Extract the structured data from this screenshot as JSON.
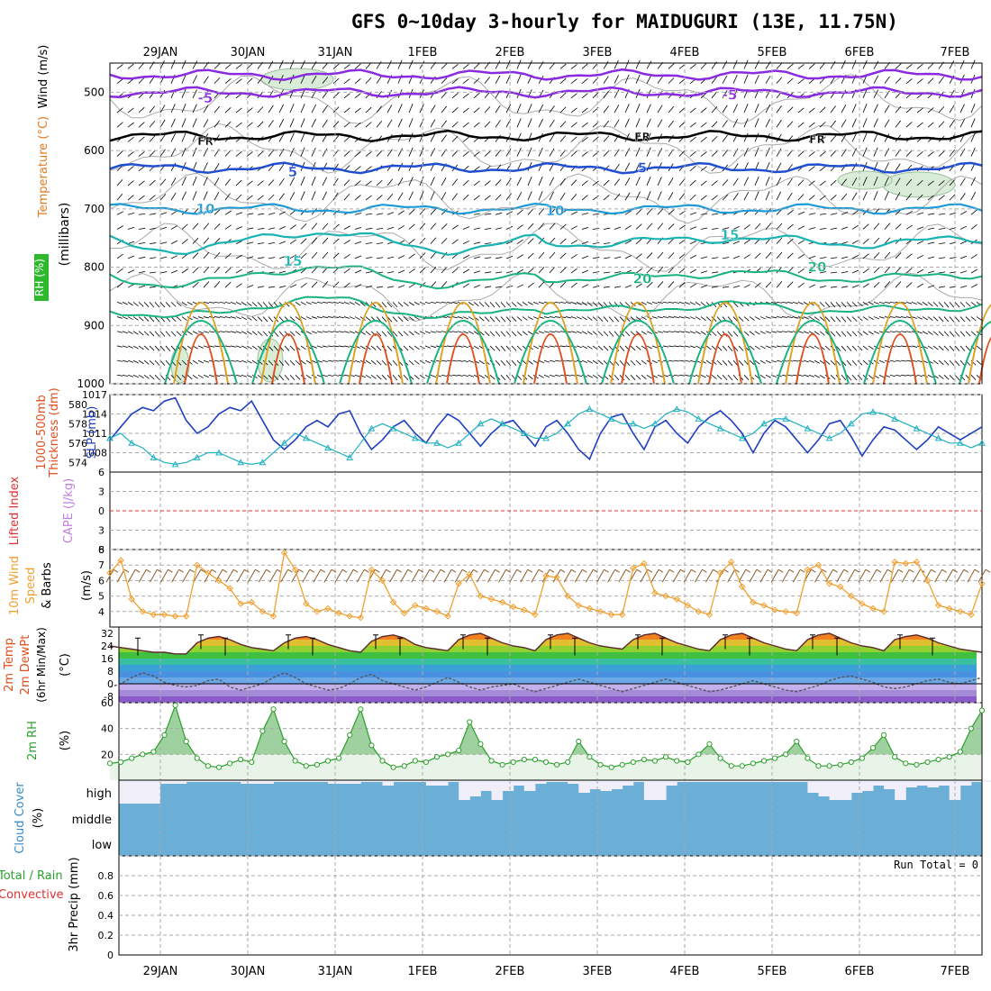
{
  "title": "GFS 0~10day 3-hourly for MAIDUGURI (13E, 11.75N)",
  "dates": [
    "29JAN",
    "30JAN",
    "31JAN",
    "1FEB",
    "2FEB",
    "3FEB",
    "4FEB",
    "5FEB",
    "6FEB",
    "7FEB"
  ],
  "colors": {
    "temp": [
      "#8a2be2",
      "#000000",
      "#1f4fd0",
      "#1e9ad6",
      "#19b3b3",
      "#19b380",
      "#e0a020",
      "#e05020",
      "#d01060"
    ],
    "slp": "#1f3fc0",
    "thickness": "#1fb0c0",
    "wind10m": "#f0a030",
    "barbs": "#8b5a2b",
    "rh": "#2ca02c",
    "cloud": "#6baed6",
    "precip_total": "#2ca02c",
    "precip_conv": "#e03030",
    "lifted": "#e03030",
    "cape": "#c080e0"
  },
  "chart_data": [
    {
      "panel": "upper-air",
      "type": "contour",
      "axis_label_parts": [
        "Wind (m/s)",
        "Temperature (°C)",
        "RH (%)",
        "(millibars)"
      ],
      "yticks": [
        500,
        600,
        700,
        800,
        900,
        1000
      ],
      "ylim": [
        450,
        1000
      ],
      "contour_labels": [
        {
          "text": "-5",
          "date": "29JAN",
          "level": 510
        },
        {
          "text": "-5",
          "date": "4FEB",
          "level": 505
        },
        {
          "text": "FR",
          "date": "29JAN",
          "level": 583
        },
        {
          "text": "FR",
          "date": "3FEB",
          "level": 575
        },
        {
          "text": "FR",
          "date": "5FEB",
          "level": 580
        },
        {
          "text": "5",
          "date": "30JAN",
          "level": 637
        },
        {
          "text": "5",
          "date": "3FEB",
          "level": 630
        },
        {
          "text": "10",
          "date": "29JAN",
          "level": 700
        },
        {
          "text": "10",
          "date": "2FEB",
          "level": 703
        },
        {
          "text": "15",
          "date": "30JAN",
          "level": 790
        },
        {
          "text": "15",
          "date": "4FEB",
          "level": 745
        },
        {
          "text": "20",
          "date": "3FEB",
          "level": 820
        },
        {
          "text": "20",
          "date": "5FEB",
          "level": 800
        }
      ]
    },
    {
      "panel": "slp-thickness",
      "type": "line",
      "axis_label_parts": [
        "1000-500mb",
        "Thickness (dm)",
        "SLP (mb)"
      ],
      "yticks_left": [
        574,
        576,
        578,
        580
      ],
      "yticks_right": [
        1008,
        1011,
        1014,
        1017
      ],
      "ylim_left": [
        573,
        581
      ],
      "ylim_right": [
        1005,
        1017
      ],
      "series": [
        {
          "name": "SLP (mb)",
          "axis": "right",
          "values": [
            1010,
            1012,
            1014,
            1015,
            1014.5,
            1016,
            1016.5,
            1013,
            1011,
            1012,
            1014,
            1015,
            1014.5,
            1016,
            1013,
            1010,
            1008.5,
            1010,
            1012,
            1013,
            1012,
            1014,
            1014.5,
            1011,
            1008.5,
            1010,
            1012,
            1013,
            1011,
            1009.5,
            1012,
            1014,
            1013,
            1011,
            1009,
            1011,
            1012.5,
            1013,
            1011,
            1009,
            1012,
            1013,
            1011,
            1008.5,
            1007,
            1011,
            1013.5,
            1014,
            1011,
            1008.5,
            1012,
            1013,
            1011,
            1009.5,
            1012,
            1013.5,
            1014.5,
            1013,
            1011,
            1008,
            1011,
            1013,
            1012,
            1010,
            1008,
            1010,
            1012.5,
            1013,
            1010.5,
            1007.5,
            1010,
            1012,
            1011.5,
            1010,
            1008.5,
            1010,
            1012,
            1011,
            1010,
            1011,
            1012
          ]
        },
        {
          "name": "1000-500mb Thickness (dm)",
          "axis": "left",
          "values": [
            576.5,
            577,
            576,
            575.5,
            574.5,
            574,
            573.8,
            574,
            574.5,
            575,
            575,
            574.5,
            574,
            573.8,
            574,
            575,
            576,
            577,
            576.5,
            576,
            575.5,
            575,
            574.5,
            576,
            577.5,
            578,
            577.5,
            577,
            576.5,
            576,
            576,
            575.5,
            576,
            577,
            578,
            578.5,
            578,
            577.5,
            577,
            576.5,
            576.5,
            577,
            578,
            579,
            579.5,
            579,
            578.5,
            578,
            578,
            577.5,
            578,
            579,
            579.5,
            579.2,
            578.5,
            578,
            577.5,
            577,
            576.5,
            577,
            578,
            578.5,
            578.5,
            578,
            577.5,
            577,
            576.5,
            577,
            578,
            579,
            579.2,
            579,
            578.5,
            578,
            577.5,
            577,
            576.5,
            576,
            576,
            575.5,
            576
          ]
        }
      ]
    },
    {
      "panel": "stability",
      "type": "line",
      "axis_label_parts": [
        "Lifted Index",
        "CAPE (J/kg)"
      ],
      "yticks": [
        6,
        3,
        0,
        3,
        6
      ],
      "ylim": [
        -6,
        6
      ],
      "series": [
        {
          "name": "Lifted Index",
          "constant": 0
        }
      ]
    },
    {
      "panel": "wind10m",
      "type": "line",
      "axis_label_parts": [
        "10m Wind",
        "Speed",
        "(m/s)",
        "& Barbs"
      ],
      "yticks": [
        4,
        5,
        6,
        7,
        8
      ],
      "ylim": [
        3,
        8
      ],
      "series": [
        {
          "name": "10m Wind Speed",
          "values": [
            6.5,
            7.3,
            4.8,
            4.0,
            3.8,
            3.8,
            3.7,
            3.7,
            7.0,
            6.5,
            6.0,
            5.5,
            4.5,
            4.6,
            4.0,
            3.7,
            7.8,
            6.7,
            4.5,
            4.0,
            4.2,
            3.9,
            3.7,
            3.6,
            6.7,
            6.0,
            4.6,
            3.9,
            4.4,
            4.2,
            4.0,
            3.7,
            5.8,
            6.4,
            5.0,
            4.8,
            4.6,
            4.3,
            4.1,
            3.8,
            6.3,
            6.2,
            5.0,
            4.4,
            4.2,
            4.0,
            3.8,
            3.8,
            6.8,
            7.1,
            5.2,
            5.0,
            4.8,
            4.4,
            4.0,
            3.8,
            6.5,
            7.2,
            5.6,
            4.6,
            4.4,
            4.1,
            4.0,
            3.9,
            6.7,
            7.0,
            5.8,
            5.6,
            5.0,
            4.5,
            4.2,
            4.0,
            7.2,
            7.1,
            7.2,
            6.0,
            4.4,
            4.2,
            4.0,
            3.8,
            5.8
          ]
        }
      ]
    },
    {
      "panel": "temperature",
      "type": "area",
      "axis_label_parts": [
        "2m Temp",
        "2m DewPt",
        "(6hr Min/Max)",
        "(°C)"
      ],
      "yticks": [
        -8,
        0,
        8,
        16,
        24,
        32
      ],
      "ylim": [
        -12,
        36
      ],
      "series": [
        {
          "name": "2m Temp",
          "values": [
            24,
            23,
            22,
            21,
            20,
            20,
            19,
            19,
            26,
            29,
            30,
            28,
            25,
            23,
            22,
            21,
            26,
            29,
            30,
            28,
            25,
            23,
            21,
            20,
            27,
            30,
            31,
            29,
            25,
            23,
            22,
            21,
            28,
            31,
            32,
            29,
            26,
            24,
            23,
            21,
            28,
            31,
            32,
            29,
            26,
            24,
            23,
            22,
            28,
            31,
            32,
            29,
            26,
            24,
            22,
            21,
            28,
            31,
            32,
            29,
            26,
            24,
            22,
            21,
            28,
            31,
            32,
            29,
            26,
            24,
            23,
            21,
            28,
            30,
            31,
            29,
            26,
            24,
            22,
            21,
            20
          ]
        },
        {
          "name": "2m DewPt",
          "values": [
            -2,
            0,
            4,
            7,
            5,
            1,
            -1,
            -2,
            -1,
            2,
            3,
            -2,
            -4,
            -2,
            0,
            4,
            7,
            4,
            0,
            -2,
            -4,
            -3,
            0,
            4,
            6,
            2,
            0,
            -2,
            -4,
            -2,
            1,
            4,
            1,
            -2,
            -4,
            -2,
            -1,
            0,
            -3,
            -5,
            -3,
            -1,
            1,
            3,
            1,
            -1,
            -3,
            -5,
            -3,
            -1,
            1,
            3,
            1,
            -1,
            -3,
            -5,
            -4,
            -2,
            0,
            2,
            0,
            -2,
            -4,
            -5,
            -3,
            -1,
            2,
            4,
            5,
            3,
            1,
            -2,
            -3,
            -2,
            0,
            2,
            3,
            1,
            0,
            2,
            4
          ]
        }
      ]
    },
    {
      "panel": "rh2m",
      "type": "area",
      "axis_label_parts": [
        "2m RH",
        "(%)"
      ],
      "yticks": [
        20,
        40,
        60
      ],
      "ylim": [
        0,
        60
      ],
      "series": [
        {
          "name": "2m RH",
          "values": [
            13,
            14,
            17,
            20,
            22,
            35,
            58,
            30,
            17,
            11,
            10,
            13,
            16,
            14,
            38,
            55,
            30,
            15,
            11,
            12,
            15,
            17,
            35,
            55,
            27,
            15,
            10,
            11,
            15,
            14,
            18,
            20,
            23,
            45,
            28,
            15,
            12,
            14,
            16,
            16,
            14,
            12,
            14,
            30,
            18,
            12,
            10,
            12,
            14,
            16,
            15,
            18,
            15,
            14,
            20,
            28,
            17,
            11,
            11,
            13,
            15,
            17,
            20,
            30,
            17,
            11,
            11,
            12,
            14,
            17,
            25,
            35,
            18,
            13,
            12,
            14,
            16,
            18,
            22,
            40,
            54
          ]
        }
      ]
    },
    {
      "panel": "cloud",
      "type": "bar",
      "axis_label_parts": [
        "Cloud Cover",
        "(%)"
      ],
      "level_labels": [
        "high",
        "middle",
        "low"
      ],
      "ylim": [
        0,
        100
      ]
    },
    {
      "panel": "precip",
      "type": "bar",
      "axis_label_parts": [
        "Total / Rain",
        "Convective",
        "3hr Precip (mm)"
      ],
      "annotation": "Run Total = 0",
      "yticks": [
        0,
        0.2,
        0.4,
        0.6,
        0.8
      ],
      "ylim": [
        0,
        1
      ]
    }
  ]
}
